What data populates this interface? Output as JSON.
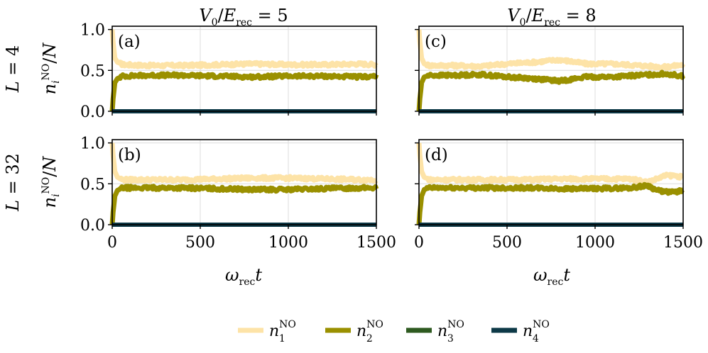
{
  "figure": {
    "column_titles": [
      "V_0/E_rec = 5",
      "V_0/E_rec = 8"
    ],
    "row_labels": [
      "L = 4",
      "L = 32"
    ],
    "ylabel": "n_i^NO / N",
    "xlabel": "ω_rec t"
  },
  "chart_data": [
    {
      "type": "line",
      "panel": "(a)",
      "x_range": [
        0,
        1500
      ],
      "ylim": [
        0,
        1.0
      ],
      "xticks": [],
      "yticks": [
        "0.0",
        "0.5",
        "1.0"
      ],
      "grid": true,
      "series": [
        {
          "name": "n_1^NO",
          "color": "#fde3a7",
          "x": [
            0,
            5,
            15,
            30,
            60,
            200,
            400,
            600,
            800,
            1000,
            1200,
            1400,
            1500
          ],
          "y": [
            1.0,
            0.85,
            0.65,
            0.6,
            0.57,
            0.56,
            0.56,
            0.57,
            0.58,
            0.57,
            0.57,
            0.58,
            0.57
          ]
        },
        {
          "name": "n_2^NO",
          "color": "#9a9000",
          "x": [
            0,
            5,
            15,
            30,
            60,
            200,
            400,
            600,
            800,
            1000,
            1200,
            1400,
            1500
          ],
          "y": [
            0.0,
            0.15,
            0.35,
            0.4,
            0.43,
            0.44,
            0.44,
            0.43,
            0.42,
            0.43,
            0.43,
            0.42,
            0.43
          ]
        },
        {
          "name": "n_3^NO",
          "color": "#2e5a20",
          "x": [
            0,
            1500
          ],
          "y": [
            0.0,
            0.0
          ]
        },
        {
          "name": "n_4^NO",
          "color": "#0d3947",
          "x": [
            0,
            1500
          ],
          "y": [
            0.0,
            0.0
          ]
        }
      ]
    },
    {
      "type": "line",
      "panel": "(c)",
      "x_range": [
        0,
        1500
      ],
      "ylim": [
        0,
        1.0
      ],
      "xticks": [],
      "yticks": [],
      "grid": true,
      "series": [
        {
          "name": "n_1^NO",
          "color": "#fde3a7",
          "x": [
            0,
            5,
            15,
            30,
            60,
            200,
            350,
            500,
            650,
            800,
            950,
            1100,
            1250,
            1400,
            1500
          ],
          "y": [
            1.0,
            0.85,
            0.65,
            0.58,
            0.56,
            0.56,
            0.55,
            0.58,
            0.6,
            0.63,
            0.58,
            0.58,
            0.56,
            0.54,
            0.57
          ]
        },
        {
          "name": "n_2^NO",
          "color": "#9a9000",
          "x": [
            0,
            5,
            15,
            30,
            60,
            200,
            350,
            500,
            650,
            800,
            950,
            1100,
            1250,
            1400,
            1500
          ],
          "y": [
            0.0,
            0.15,
            0.35,
            0.42,
            0.44,
            0.44,
            0.45,
            0.42,
            0.4,
            0.37,
            0.42,
            0.42,
            0.44,
            0.46,
            0.43
          ]
        },
        {
          "name": "n_3^NO",
          "color": "#2e5a20",
          "x": [
            0,
            1500
          ],
          "y": [
            0.0,
            0.0
          ]
        },
        {
          "name": "n_4^NO",
          "color": "#0d3947",
          "x": [
            0,
            1500
          ],
          "y": [
            0.0,
            0.0
          ]
        }
      ]
    },
    {
      "type": "line",
      "panel": "(b)",
      "x_range": [
        0,
        1500
      ],
      "ylim": [
        0,
        1.0
      ],
      "xticks": [
        "0",
        "500",
        "1000",
        "1500"
      ],
      "yticks": [
        "0.0",
        "0.5",
        "1.0"
      ],
      "grid": true,
      "series": [
        {
          "name": "n_1^NO",
          "color": "#fde3a7",
          "x": [
            0,
            5,
            15,
            30,
            60,
            200,
            400,
            600,
            800,
            1000,
            1200,
            1400,
            1500
          ],
          "y": [
            1.0,
            0.85,
            0.65,
            0.58,
            0.55,
            0.55,
            0.55,
            0.56,
            0.57,
            0.57,
            0.56,
            0.55,
            0.55
          ]
        },
        {
          "name": "n_2^NO",
          "color": "#9a9000",
          "x": [
            0,
            5,
            15,
            30,
            60,
            200,
            400,
            600,
            800,
            1000,
            1200,
            1400,
            1500
          ],
          "y": [
            0.0,
            0.15,
            0.35,
            0.42,
            0.45,
            0.45,
            0.45,
            0.44,
            0.43,
            0.43,
            0.44,
            0.45,
            0.45
          ]
        },
        {
          "name": "n_3^NO",
          "color": "#2e5a20",
          "x": [
            0,
            1500
          ],
          "y": [
            0.0,
            0.0
          ]
        },
        {
          "name": "n_4^NO",
          "color": "#0d3947",
          "x": [
            0,
            1500
          ],
          "y": [
            0.0,
            0.0
          ]
        }
      ]
    },
    {
      "type": "line",
      "panel": "(d)",
      "x_range": [
        0,
        1500
      ],
      "ylim": [
        0,
        1.0
      ],
      "xticks": [
        "0",
        "500",
        "1000",
        "1500"
      ],
      "yticks": [],
      "grid": true,
      "series": [
        {
          "name": "n_1^NO",
          "color": "#fde3a7",
          "x": [
            0,
            5,
            15,
            30,
            60,
            200,
            400,
            600,
            800,
            1000,
            1200,
            1300,
            1350,
            1400,
            1450,
            1500
          ],
          "y": [
            1.0,
            0.85,
            0.65,
            0.58,
            0.55,
            0.55,
            0.55,
            0.55,
            0.56,
            0.56,
            0.56,
            0.52,
            0.56,
            0.6,
            0.6,
            0.58
          ]
        },
        {
          "name": "n_2^NO",
          "color": "#9a9000",
          "x": [
            0,
            5,
            15,
            30,
            60,
            200,
            400,
            600,
            800,
            1000,
            1200,
            1300,
            1350,
            1400,
            1450,
            1500
          ],
          "y": [
            0.0,
            0.15,
            0.35,
            0.43,
            0.45,
            0.45,
            0.45,
            0.45,
            0.44,
            0.44,
            0.45,
            0.48,
            0.42,
            0.4,
            0.4,
            0.42
          ]
        },
        {
          "name": "n_3^NO",
          "color": "#2e5a20",
          "x": [
            0,
            1500
          ],
          "y": [
            0.0,
            0.0
          ]
        },
        {
          "name": "n_4^NO",
          "color": "#0d3947",
          "x": [
            0,
            1500
          ],
          "y": [
            0.0,
            0.0
          ]
        }
      ]
    }
  ],
  "legend": {
    "placement": "bottom-center",
    "entries": [
      {
        "base": "n",
        "sub": "1",
        "sup": "NO",
        "color": "#fde3a7"
      },
      {
        "base": "n",
        "sub": "2",
        "sup": "NO",
        "color": "#9a9000"
      },
      {
        "base": "n",
        "sub": "3",
        "sup": "NO",
        "color": "#2e5a20"
      },
      {
        "base": "n",
        "sub": "4",
        "sup": "NO",
        "color": "#0d3947"
      }
    ]
  }
}
